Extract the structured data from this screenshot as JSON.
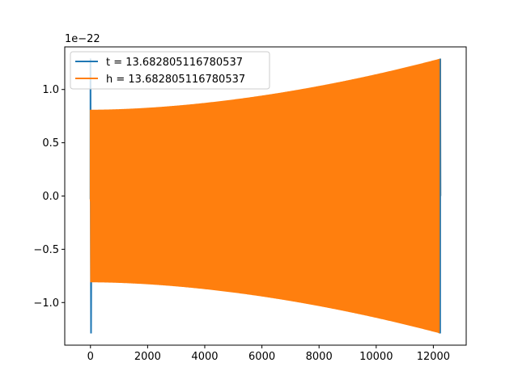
{
  "chart_data": {
    "type": "line",
    "title": "",
    "xlabel": "",
    "ylabel": "",
    "offset_text": "1e−22",
    "scale_factor": 1e-22,
    "xlim": [
      -900,
      13150
    ],
    "ylim": [
      -1.4,
      1.4
    ],
    "x_ticks": [
      0,
      2000,
      4000,
      6000,
      8000,
      10000,
      12000
    ],
    "x_tick_labels": [
      "0",
      "2000",
      "4000",
      "6000",
      "8000",
      "10000",
      "12000"
    ],
    "y_ticks": [
      -1.0,
      -0.5,
      0.0,
      0.5,
      1.0
    ],
    "y_tick_labels": [
      "−1.0",
      "−0.5",
      "0.0",
      "0.5",
      "1.0"
    ],
    "grid": false,
    "legend_position": "top-left",
    "series": [
      {
        "name": "t = 13.682805116780537",
        "color": "#1f77b4",
        "x_start": 0,
        "x_end": 12250,
        "envelope_start": 1.29,
        "envelope_end": 1.29,
        "start_spike": 1.29
      },
      {
        "name": "h = 13.682805116780537",
        "color": "#ff7f0e",
        "x_start": 0,
        "x_end": 12250,
        "envelope_start": 0.81,
        "envelope_end": 1.29,
        "oscillation_cycles": 420
      }
    ]
  }
}
